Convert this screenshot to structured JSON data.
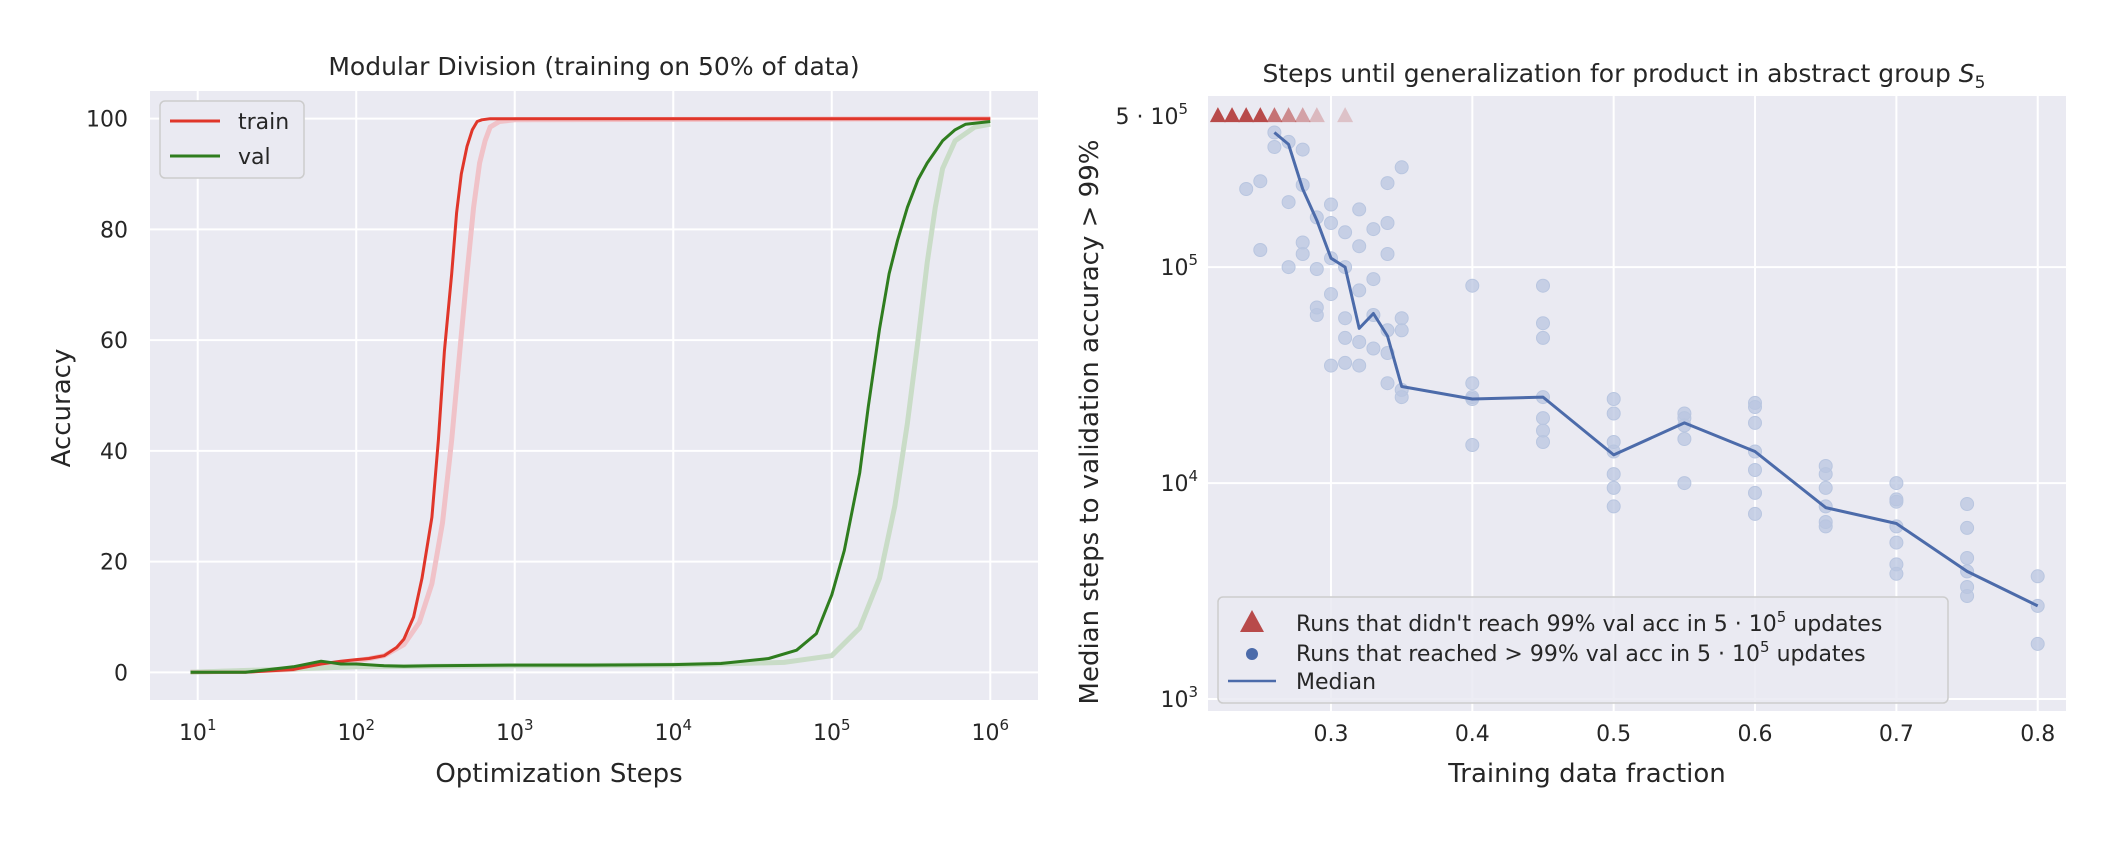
{
  "colors": {
    "axes_bg": "#eaeaf2",
    "train": "#e0362a",
    "val": "#2f7d1f",
    "train_shadow": "#f0c2c8",
    "val_shadow": "#c9dcc7",
    "points": "#b9c6e0",
    "median": "#4c6baa",
    "triangle": "#b84a4a"
  },
  "chart_data": [
    {
      "type": "line",
      "title": "Modular Division (training on 50% of data)",
      "xlabel": "Optimization Steps",
      "ylabel": "Accuracy",
      "xscale": "log",
      "xlim": [
        5,
        2000000
      ],
      "ylim": [
        -5,
        105
      ],
      "grid": true,
      "legend_position": "top-left",
      "xtick_base": "10",
      "xticks": [
        {
          "value": 10,
          "exp": "1"
        },
        {
          "value": 100,
          "exp": "2"
        },
        {
          "value": 1000,
          "exp": "3"
        },
        {
          "value": 10000,
          "exp": "4"
        },
        {
          "value": 100000,
          "exp": "5"
        },
        {
          "value": 1000000,
          "exp": "6"
        }
      ],
      "yticks": [
        {
          "value": 0,
          "label": "0"
        },
        {
          "value": 20,
          "label": "20"
        },
        {
          "value": 40,
          "label": "40"
        },
        {
          "value": 60,
          "label": "60"
        },
        {
          "value": 80,
          "label": "80"
        },
        {
          "value": 100,
          "label": "100"
        }
      ],
      "series": [
        {
          "name": "train",
          "x": [
            9,
            20,
            40,
            60,
            80,
            100,
            120,
            150,
            180,
            200,
            230,
            260,
            300,
            330,
            360,
            400,
            430,
            460,
            500,
            540,
            580,
            620,
            700,
            800,
            1000,
            1500,
            2000,
            3000,
            5000,
            10000,
            20000,
            50000,
            100000,
            300000,
            1000000
          ],
          "y": [
            0,
            0,
            0.5,
            1.5,
            2,
            2.3,
            2.5,
            3,
            4.5,
            6,
            10,
            17,
            28,
            42,
            58,
            72,
            83,
            90,
            95,
            98,
            99.5,
            99.8,
            100,
            100,
            100,
            100,
            100,
            100,
            100,
            100,
            100,
            100,
            100,
            100,
            100
          ]
        },
        {
          "name": "val",
          "x": [
            9,
            20,
            40,
            60,
            80,
            100,
            150,
            200,
            300,
            1000,
            3000,
            10000,
            20000,
            40000,
            60000,
            80000,
            100000,
            120000,
            150000,
            170000,
            200000,
            230000,
            260000,
            300000,
            350000,
            400000,
            500000,
            600000,
            700000,
            1000000
          ],
          "y": [
            0,
            0,
            1,
            2,
            1.5,
            1.5,
            1.2,
            1.1,
            1.2,
            1.3,
            1.3,
            1.4,
            1.6,
            2.5,
            4,
            7,
            14,
            22,
            36,
            48,
            62,
            72,
            78,
            84,
            89,
            92,
            96,
            98,
            99,
            99.5
          ]
        }
      ],
      "shadow_series": [
        {
          "name": "train-shadow",
          "x": [
            9,
            40,
            100,
            150,
            200,
            250,
            300,
            350,
            400,
            450,
            500,
            550,
            600,
            650,
            700,
            800,
            1000,
            1000000
          ],
          "y": [
            0,
            0.5,
            2,
            3,
            5,
            9,
            16,
            27,
            42,
            58,
            72,
            84,
            92,
            96,
            98.5,
            99.5,
            99.8,
            100
          ]
        },
        {
          "name": "val-shadow",
          "x": [
            9,
            100,
            1000,
            10000,
            50000,
            100000,
            150000,
            200000,
            250000,
            300000,
            350000,
            400000,
            450000,
            500000,
            600000,
            800000,
            1000000
          ],
          "y": [
            0,
            1,
            1.2,
            1.3,
            1.8,
            3,
            8,
            17,
            30,
            45,
            60,
            74,
            84,
            91,
            96,
            98.5,
            99
          ]
        }
      ]
    },
    {
      "type": "scatter",
      "title": "Steps until generalization for product in abstract group",
      "title_math": "S",
      "title_sub": "5",
      "xlabel": "Training data fraction",
      "ylabel": "Median steps to validation accuracy > 99%",
      "yscale": "log",
      "xlim": [
        0.213,
        0.82
      ],
      "ylim": [
        880,
        620000
      ],
      "grid": true,
      "legend_position": "bottom-left",
      "xticks": [
        {
          "value": 0.3,
          "label": "0.3"
        },
        {
          "value": 0.4,
          "label": "0.4"
        },
        {
          "value": 0.5,
          "label": "0.5"
        },
        {
          "value": 0.6,
          "label": "0.6"
        },
        {
          "value": 0.7,
          "label": "0.7"
        },
        {
          "value": 0.8,
          "label": "0.8"
        }
      ],
      "yticks": [
        {
          "value": 1000,
          "base": "10",
          "exp": "3"
        },
        {
          "value": 10000,
          "base": "10",
          "exp": "4"
        },
        {
          "value": 100000,
          "base": "10",
          "exp": "5"
        }
      ],
      "ytick_extra": {
        "value": 500000,
        "mantissa": "5 · 10",
        "exp": "5"
      },
      "legend": {
        "not_reached_prefix": "Runs that didn't reach 99% val acc in 5 · 10",
        "not_reached_exp": "5",
        "not_reached_suffix": " updates",
        "reached_prefix": "Runs that reached > 99% val acc in 5 · 10",
        "reached_exp": "5",
        "reached_suffix": " updates",
        "median": "Median"
      },
      "not_reached": {
        "x": [
          0.22,
          0.23,
          0.24,
          0.25,
          0.26,
          0.27,
          0.28,
          0.29,
          0.31
        ],
        "y": 500000,
        "opacity": [
          1,
          1,
          1,
          1,
          0.75,
          0.6,
          0.45,
          0.3,
          0.25
        ]
      },
      "reached": [
        {
          "x": 0.24,
          "y": 230000
        },
        {
          "x": 0.25,
          "y": 120000
        },
        {
          "x": 0.25,
          "y": 250000
        },
        {
          "x": 0.26,
          "y": 420000
        },
        {
          "x": 0.26,
          "y": 360000
        },
        {
          "x": 0.27,
          "y": 380000
        },
        {
          "x": 0.27,
          "y": 200000
        },
        {
          "x": 0.27,
          "y": 100000
        },
        {
          "x": 0.28,
          "y": 350000
        },
        {
          "x": 0.28,
          "y": 240000
        },
        {
          "x": 0.28,
          "y": 130000
        },
        {
          "x": 0.28,
          "y": 115000
        },
        {
          "x": 0.29,
          "y": 170000
        },
        {
          "x": 0.29,
          "y": 98000
        },
        {
          "x": 0.29,
          "y": 65000
        },
        {
          "x": 0.29,
          "y": 60000
        },
        {
          "x": 0.3,
          "y": 195000
        },
        {
          "x": 0.3,
          "y": 160000
        },
        {
          "x": 0.3,
          "y": 110000
        },
        {
          "x": 0.3,
          "y": 75000
        },
        {
          "x": 0.3,
          "y": 35000
        },
        {
          "x": 0.31,
          "y": 145000
        },
        {
          "x": 0.31,
          "y": 100000
        },
        {
          "x": 0.31,
          "y": 58000
        },
        {
          "x": 0.31,
          "y": 47000
        },
        {
          "x": 0.31,
          "y": 36000
        },
        {
          "x": 0.32,
          "y": 185000
        },
        {
          "x": 0.32,
          "y": 125000
        },
        {
          "x": 0.32,
          "y": 78000
        },
        {
          "x": 0.32,
          "y": 45000
        },
        {
          "x": 0.32,
          "y": 35000
        },
        {
          "x": 0.33,
          "y": 88000
        },
        {
          "x": 0.33,
          "y": 60000
        },
        {
          "x": 0.33,
          "y": 42000
        },
        {
          "x": 0.33,
          "y": 150000
        },
        {
          "x": 0.34,
          "y": 245000
        },
        {
          "x": 0.34,
          "y": 160000
        },
        {
          "x": 0.34,
          "y": 115000
        },
        {
          "x": 0.34,
          "y": 51000
        },
        {
          "x": 0.34,
          "y": 40000
        },
        {
          "x": 0.34,
          "y": 29000
        },
        {
          "x": 0.35,
          "y": 290000
        },
        {
          "x": 0.35,
          "y": 58000
        },
        {
          "x": 0.35,
          "y": 51000
        },
        {
          "x": 0.35,
          "y": 27000
        },
        {
          "x": 0.35,
          "y": 25000
        },
        {
          "x": 0.4,
          "y": 82000
        },
        {
          "x": 0.4,
          "y": 29000
        },
        {
          "x": 0.4,
          "y": 25000
        },
        {
          "x": 0.4,
          "y": 24500
        },
        {
          "x": 0.4,
          "y": 15000
        },
        {
          "x": 0.45,
          "y": 82000
        },
        {
          "x": 0.45,
          "y": 55000
        },
        {
          "x": 0.45,
          "y": 47000
        },
        {
          "x": 0.45,
          "y": 25000
        },
        {
          "x": 0.45,
          "y": 20000
        },
        {
          "x": 0.45,
          "y": 17500
        },
        {
          "x": 0.45,
          "y": 15500
        },
        {
          "x": 0.5,
          "y": 24500
        },
        {
          "x": 0.5,
          "y": 21000
        },
        {
          "x": 0.5,
          "y": 15500
        },
        {
          "x": 0.5,
          "y": 14000
        },
        {
          "x": 0.5,
          "y": 11000
        },
        {
          "x": 0.5,
          "y": 9500
        },
        {
          "x": 0.5,
          "y": 7800
        },
        {
          "x": 0.55,
          "y": 21000
        },
        {
          "x": 0.55,
          "y": 20000
        },
        {
          "x": 0.55,
          "y": 18500
        },
        {
          "x": 0.55,
          "y": 16000
        },
        {
          "x": 0.55,
          "y": 10000
        },
        {
          "x": 0.6,
          "y": 23500
        },
        {
          "x": 0.6,
          "y": 22500
        },
        {
          "x": 0.6,
          "y": 19000
        },
        {
          "x": 0.6,
          "y": 14000
        },
        {
          "x": 0.6,
          "y": 11500
        },
        {
          "x": 0.6,
          "y": 9000
        },
        {
          "x": 0.6,
          "y": 7200
        },
        {
          "x": 0.65,
          "y": 12000
        },
        {
          "x": 0.65,
          "y": 11000
        },
        {
          "x": 0.65,
          "y": 9500
        },
        {
          "x": 0.65,
          "y": 7800
        },
        {
          "x": 0.65,
          "y": 6600
        },
        {
          "x": 0.65,
          "y": 6300
        },
        {
          "x": 0.7,
          "y": 10000
        },
        {
          "x": 0.7,
          "y": 8400
        },
        {
          "x": 0.7,
          "y": 8200
        },
        {
          "x": 0.7,
          "y": 6300
        },
        {
          "x": 0.7,
          "y": 5300
        },
        {
          "x": 0.7,
          "y": 4200
        },
        {
          "x": 0.7,
          "y": 3800
        },
        {
          "x": 0.75,
          "y": 8000
        },
        {
          "x": 0.75,
          "y": 6200
        },
        {
          "x": 0.75,
          "y": 4500
        },
        {
          "x": 0.75,
          "y": 3900
        },
        {
          "x": 0.75,
          "y": 3300
        },
        {
          "x": 0.75,
          "y": 3000
        },
        {
          "x": 0.8,
          "y": 3700
        },
        {
          "x": 0.8,
          "y": 2700
        },
        {
          "x": 0.8,
          "y": 1800
        }
      ],
      "median": {
        "x": [
          0.26,
          0.27,
          0.28,
          0.29,
          0.3,
          0.31,
          0.32,
          0.33,
          0.34,
          0.35,
          0.4,
          0.45,
          0.5,
          0.55,
          0.6,
          0.65,
          0.7,
          0.75,
          0.8
        ],
        "y": [
          420000,
          370000,
          230000,
          165000,
          110000,
          100000,
          52000,
          61000,
          48000,
          28000,
          24500,
          25000,
          13500,
          19000,
          14000,
          7700,
          6500,
          3900,
          2700
        ]
      }
    }
  ]
}
